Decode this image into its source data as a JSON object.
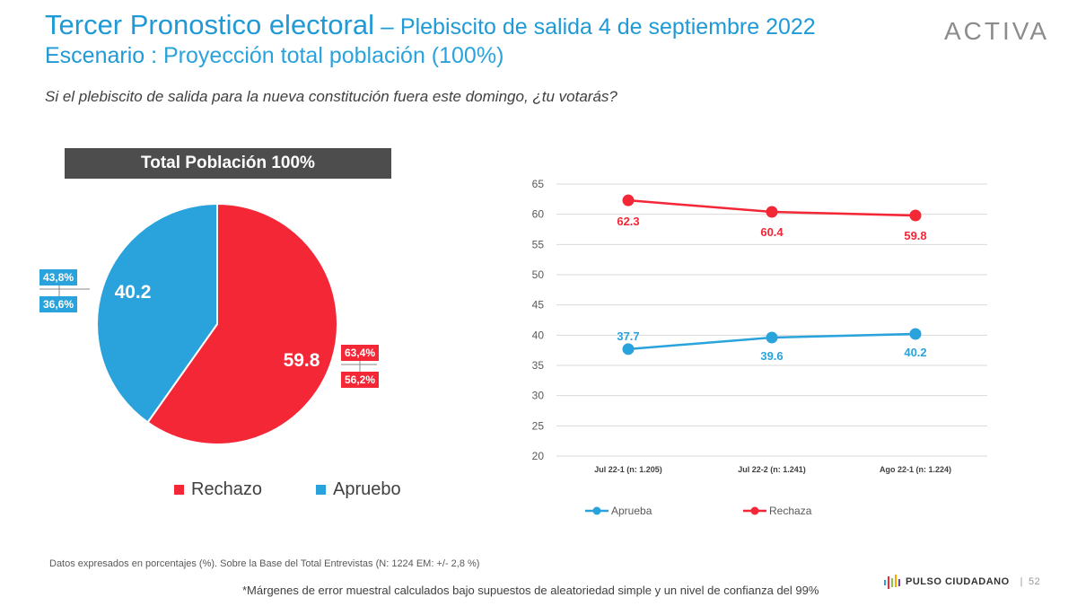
{
  "header": {
    "title_main": "Tercer Pronostico electoral",
    "title_dash": " – ",
    "title_sub": "Plebiscito de salida 4 de septiembre 2022",
    "scenario_label": "Escenario :",
    "scenario_value": " Proyección total población (100%)",
    "logo_text": "ACTIVA"
  },
  "question": "Si el plebiscito de salida para la nueva constitución fuera este domingo, ¿tu votarás?",
  "panel_title": "Total Población 100%",
  "colors": {
    "rechazo": "#f42737",
    "apruebo": "#2aa3dc",
    "panel": "#4d4d4d"
  },
  "chart_data": [
    {
      "type": "pie",
      "slices": [
        {
          "label": "Rechazo",
          "value": 59.8,
          "value_label": "59.8",
          "ci_high": "63,4%",
          "ci_low": "56,2%"
        },
        {
          "label": "Apruebo",
          "value": 40.2,
          "value_label": "40.2",
          "ci_high": "43,8%",
          "ci_low": "36,6%"
        }
      ],
      "legend": [
        "Rechazo",
        "Apruebo"
      ],
      "legend_position": "bottom"
    },
    {
      "type": "line",
      "categories": [
        "Jul 22-1 (n: 1.205)",
        "Jul 22-2 (n: 1.241)",
        "Ago 22-1 (n: 1.224)"
      ],
      "series": [
        {
          "name": "Aprueba",
          "values": [
            37.7,
            39.6,
            40.2
          ],
          "labels": [
            "37.7",
            "39.6",
            "40.2"
          ]
        },
        {
          "name": "Rechaza",
          "values": [
            62.3,
            60.4,
            59.8
          ],
          "labels": [
            "62.3",
            "60.4",
            "59.8"
          ]
        }
      ],
      "ylim": [
        20,
        65
      ],
      "yticks": [
        20,
        25,
        30,
        35,
        40,
        45,
        50,
        55,
        60,
        65
      ],
      "grid": true,
      "legend_position": "bottom"
    }
  ],
  "footer": {
    "note": "Datos expresados en porcentajes (%). Sobre la Base del Total Entrevistas (N: 1224  EM: +/- 2,8 %)",
    "margin_note": "*Márgenes de error muestral calculados bajo supuestos de aleatoriedad simple y un nivel de confianza del 99%",
    "brand": "PULSO CIUDADANO",
    "separator": "|",
    "page": "52"
  }
}
